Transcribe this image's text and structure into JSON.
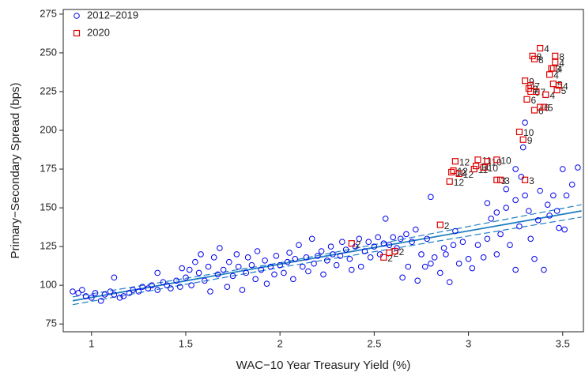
{
  "chart_data": {
    "type": "scatter",
    "xlabel": "WAC−10 Year Treasury Yield (%)",
    "ylabel": "Primary−Secondary Spread (bps)",
    "xlim": [
      0.85,
      3.61
    ],
    "ylim": [
      70,
      278
    ],
    "xticks": [
      1,
      1.5,
      2,
      2.5,
      3,
      3.5
    ],
    "yticks": [
      75,
      100,
      125,
      150,
      175,
      200,
      225,
      250,
      275
    ],
    "legend": "upper left",
    "series": [
      {
        "name": "2012–2019",
        "color": "#0000ee",
        "marker": "circle",
        "x": [
          0.9,
          0.93,
          0.95,
          0.97,
          1.0,
          1.02,
          1.05,
          1.07,
          1.1,
          1.12,
          1.15,
          1.17,
          1.2,
          1.22,
          1.25,
          1.27,
          1.3,
          1.32,
          1.35,
          1.38,
          1.4,
          1.42,
          1.45,
          1.47,
          1.5,
          1.52,
          1.53,
          1.55,
          1.57,
          1.58,
          1.6,
          1.62,
          1.63,
          1.65,
          1.67,
          1.68,
          1.7,
          1.72,
          1.73,
          1.75,
          1.77,
          1.78,
          1.8,
          1.82,
          1.83,
          1.85,
          1.87,
          1.88,
          1.9,
          1.92,
          1.93,
          1.95,
          1.97,
          1.98,
          2.0,
          2.02,
          2.04,
          2.05,
          2.07,
          2.08,
          2.1,
          2.12,
          2.14,
          2.15,
          2.17,
          2.18,
          2.2,
          2.22,
          2.23,
          2.25,
          2.27,
          2.28,
          2.3,
          2.32,
          2.33,
          2.35,
          2.37,
          2.38,
          2.4,
          2.42,
          2.43,
          2.45,
          2.47,
          2.48,
          2.5,
          2.52,
          2.53,
          2.55,
          2.56,
          2.58,
          2.6,
          2.62,
          2.64,
          2.65,
          2.67,
          2.68,
          2.7,
          2.72,
          2.73,
          2.75,
          2.77,
          2.78,
          2.8,
          2.8,
          2.82,
          2.85,
          2.87,
          2.88,
          2.9,
          2.92,
          2.93,
          2.95,
          2.97,
          3.0,
          3.02,
          3.05,
          3.08,
          3.1,
          3.12,
          3.15,
          3.17,
          3.2,
          3.2,
          3.22,
          3.25,
          3.25,
          3.27,
          3.28,
          3.29,
          3.3,
          3.3,
          3.32,
          3.33,
          3.35,
          3.37,
          3.38,
          3.4,
          3.42,
          3.43,
          3.45,
          3.47,
          3.48,
          3.5,
          3.51,
          3.52,
          3.55,
          3.58,
          3.1,
          3.15,
          3.25,
          1.12,
          1.48,
          1.35
        ],
        "values": [
          96,
          95,
          97,
          93,
          92,
          95,
          90,
          94,
          96,
          94,
          92,
          93,
          95,
          97,
          96,
          99,
          98,
          100,
          97,
          102,
          100,
          98,
          103,
          99,
          105,
          110,
          100,
          115,
          108,
          120,
          103,
          112,
          96,
          118,
          107,
          124,
          110,
          99,
          115,
          106,
          120,
          112,
          97,
          108,
          118,
          113,
          104,
          122,
          110,
          116,
          101,
          112,
          107,
          119,
          113,
          108,
          115,
          121,
          104,
          117,
          126,
          112,
          118,
          109,
          130,
          114,
          119,
          122,
          107,
          116,
          125,
          120,
          113,
          119,
          128,
          123,
          117,
          110,
          125,
          130,
          112,
          122,
          128,
          118,
          125,
          131,
          120,
          127,
          143,
          126,
          131,
          124,
          130,
          105,
          133,
          112,
          128,
          136,
          103,
          120,
          112,
          130,
          157,
          114,
          118,
          108,
          124,
          120,
          102,
          126,
          135,
          114,
          128,
          117,
          111,
          126,
          118,
          130,
          143,
          120,
          133,
          150,
          162,
          126,
          155,
          110,
          138,
          170,
          189,
          205,
          158,
          148,
          130,
          117,
          142,
          161,
          110,
          152,
          145,
          158,
          148,
          137,
          175,
          136,
          158,
          165,
          176,
          153,
          147,
          175,
          105,
          111,
          108
        ]
      },
      {
        "name": "2020",
        "color": "#dd0000",
        "marker": "square",
        "x": [
          2.85,
          2.55,
          2.58,
          2.61,
          2.38,
          2.9,
          2.91,
          2.92,
          2.93,
          2.95,
          3.03,
          3.04,
          3.05,
          3.08,
          3.1,
          3.15,
          3.15,
          3.17,
          3.3,
          3.27,
          3.29,
          3.3,
          3.32,
          3.31,
          3.33,
          3.35,
          3.38,
          3.4,
          3.33,
          3.36,
          3.45,
          3.47,
          3.48,
          3.41,
          3.43,
          3.45,
          3.46,
          3.38,
          3.34,
          3.35,
          3.46,
          3.44
        ],
        "values": [
          139,
          118,
          121,
          122,
          127,
          167,
          173,
          174,
          180,
          172,
          175,
          177,
          181,
          176,
          180,
          181,
          168,
          168,
          168,
          199,
          194,
          232,
          227,
          220,
          225,
          213,
          215,
          215,
          229,
          225,
          230,
          226,
          229,
          223,
          236,
          240,
          244,
          253,
          248,
          246,
          248,
          240
        ],
        "labels": [
          "2",
          "2",
          "2",
          "2",
          "2",
          "12",
          "12",
          "12",
          "12",
          "12",
          "11",
          "11",
          "11",
          "10",
          "10",
          "10",
          "3",
          "3",
          "3",
          "10",
          "9",
          "9",
          "9",
          "6",
          "6",
          "6",
          "6",
          "5",
          "7",
          "7",
          "5",
          "5",
          "4",
          "4",
          "4",
          "4",
          "4",
          "4",
          "8",
          "8",
          "8",
          "3"
        ]
      }
    ],
    "fit_lines": [
      {
        "color": "#1f7fc0",
        "dash": false,
        "x": [
          0.9,
          3.6
        ],
        "values": [
          90,
          148
        ]
      },
      {
        "color": "#1f7fc0",
        "dash": true,
        "x": [
          0.9,
          2.0,
          3.6
        ],
        "values": [
          87.5,
          111.5,
          144
        ]
      },
      {
        "color": "#1f7fc0",
        "dash": true,
        "x": [
          0.9,
          2.0,
          3.6
        ],
        "values": [
          92.5,
          114.5,
          152
        ]
      }
    ]
  }
}
